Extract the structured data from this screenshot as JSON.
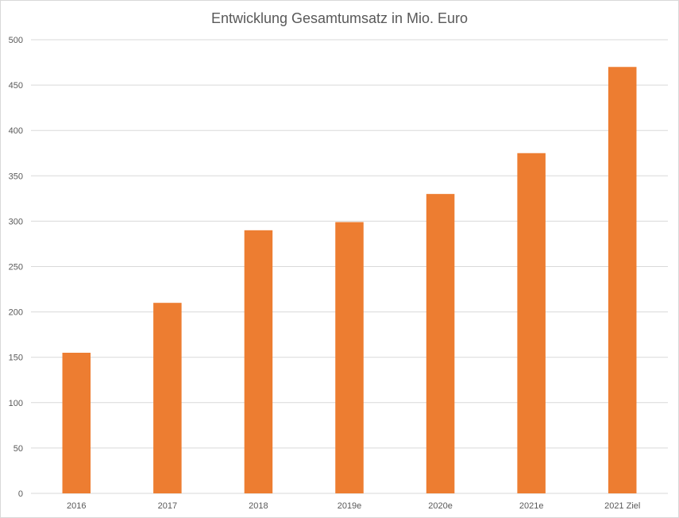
{
  "chart_data": {
    "type": "bar",
    "title": "Entwicklung Gesamtumsatz in Mio. Euro",
    "xlabel": "",
    "ylabel": "",
    "categories": [
      "2016",
      "2017",
      "2018",
      "2019e",
      "2020e",
      "2021e",
      "2021 Ziel"
    ],
    "values": [
      155,
      210,
      290,
      299,
      330,
      375,
      470
    ],
    "ylim": [
      0,
      500
    ],
    "yticks": [
      "0",
      "50",
      "100",
      "150",
      "200",
      "250",
      "300",
      "350",
      "400",
      "450",
      "500"
    ],
    "grid": true,
    "legend": "none",
    "bar_color": "#ED7D31",
    "grid_color": "#D9D9D9"
  }
}
